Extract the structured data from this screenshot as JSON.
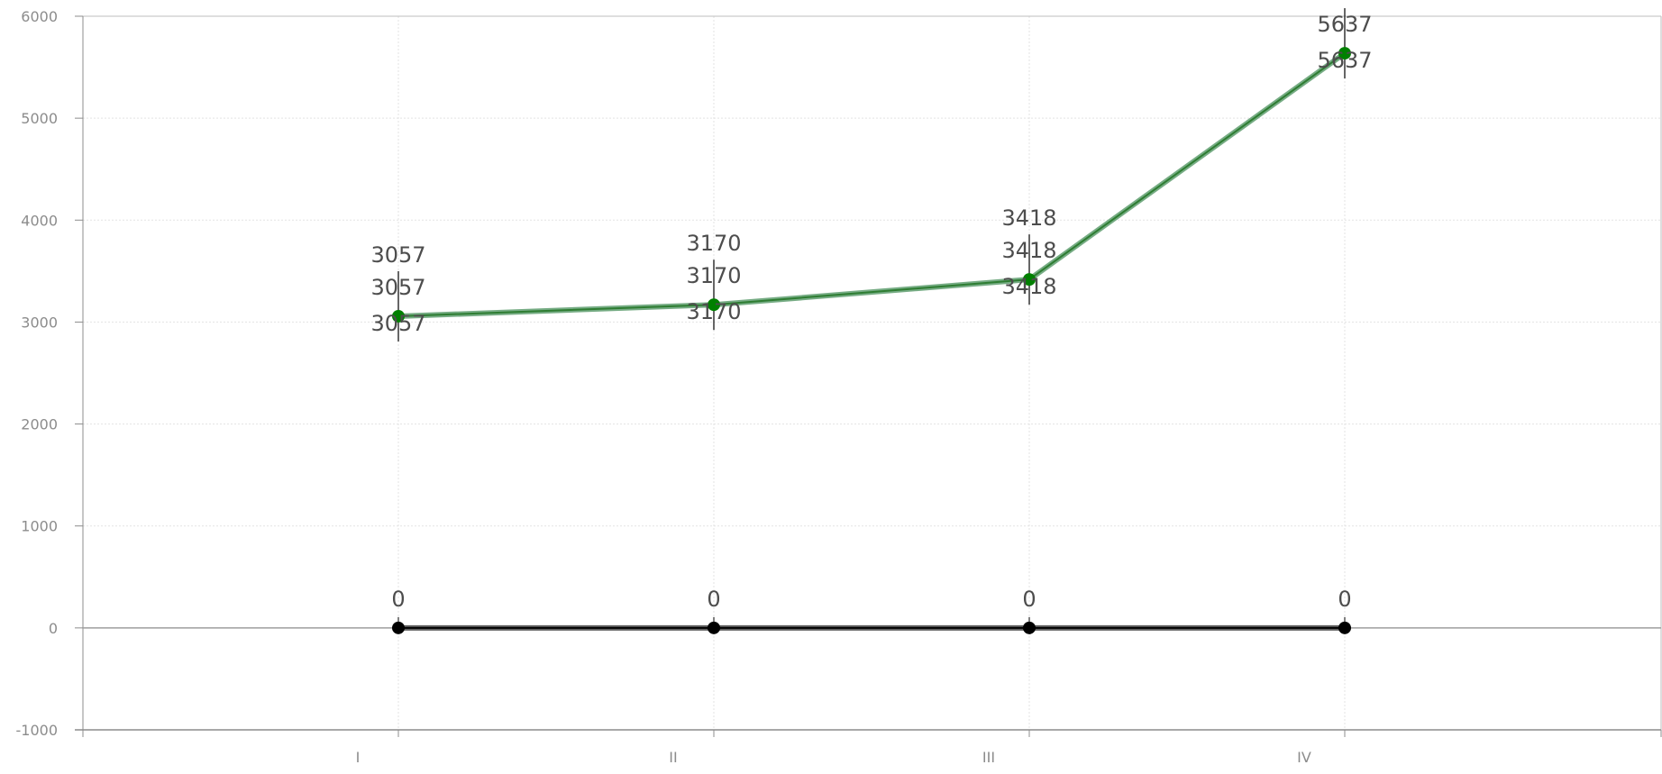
{
  "chart_data": {
    "type": "line",
    "title": "",
    "xlabel": "",
    "ylabel": "",
    "categories": [
      "I",
      "II",
      "III",
      "IV"
    ],
    "ylim": [
      -1000,
      6000
    ],
    "yticks": [
      -1000,
      0,
      1000,
      2000,
      3000,
      4000,
      5000,
      6000
    ],
    "grid": true,
    "legend": "none",
    "series": [
      {
        "values": [
          3057,
          3170,
          3418,
          5637
        ],
        "color": "#2e7d32",
        "line_color": "#5e9e6e",
        "marker_color": "#008000",
        "label_repeats": 3
      },
      {
        "values": [
          0,
          0,
          0,
          0
        ],
        "color": "#000000",
        "line_color": "#444444",
        "marker_color": "#000000",
        "label_repeats": 1
      }
    ]
  }
}
